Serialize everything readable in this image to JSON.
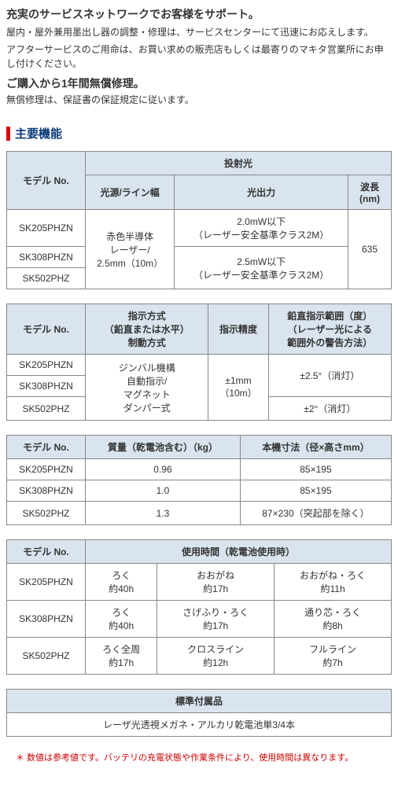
{
  "intro": {
    "title": "充実のサービスネットワークでお客様をサポート。",
    "line1": "屋内・屋外兼用墨出し器の調整・修理は、サービスセンターにて迅速にお応えします。",
    "line2": "アフターサービスのご用命は、お買い求めの販売店もしくは最寄りのマキタ営業所にお申し付けください。",
    "warranty_title": "ご購入から1年間無償修理。",
    "warranty_text": "無償修理は、保証書の保証規定に従います。"
  },
  "section_title": "主要機能",
  "models": [
    "SK205PHZN",
    "SK308PHZN",
    "SK502PHZ"
  ],
  "table1": {
    "h_model": "モデル No.",
    "h_projection": "投射光",
    "h_source": "光源/ライン幅",
    "h_output": "光出力",
    "h_wavelength": "波長(nm)",
    "source": "赤色半導体\nレーザー/\n2.5mm（10m）",
    "output1": "2.0mW以下\n（レーザー安全基準クラス2M）",
    "output2": "2.5mW以下\n（レーザー安全基準クラス2M）",
    "wavelength": "635"
  },
  "table2": {
    "h_model": "モデル No.",
    "h_method": "指示方式\n（鉛直または水平）\n制動方式",
    "h_accuracy": "指示精度",
    "h_range": "鉛直指示範囲（度）\n（レーザー光による\n範囲外の警告方法）",
    "method": "ジンバル機構\n自動指示/\nマグネット\nダンパー式",
    "accuracy": "±1mm\n（10m）",
    "range1": "±2.5°（消灯）",
    "range2": "±2°（消灯）"
  },
  "table3": {
    "h_model": "モデル No.",
    "h_mass": "質量（乾電池含む）（kg）",
    "h_size": "本機寸法（径×高さmm）",
    "rows": [
      {
        "mass": "0.96",
        "size": "85×195"
      },
      {
        "mass": "1.0",
        "size": "85×195"
      },
      {
        "mass": "1.3",
        "size": "87×230（突起部を除く）"
      }
    ]
  },
  "table4": {
    "h_model": "モデル No.",
    "h_usage": "使用時間（乾電池使用時）",
    "rows": [
      {
        "c1": "ろく\n約40h",
        "c2": "おおがね\n約17h",
        "c3": "おおがね・ろく\n約11h"
      },
      {
        "c1": "ろく\n約40h",
        "c2": "さげふり・ろく\n約17h",
        "c3": "通り芯・ろく\n約8h"
      },
      {
        "c1": "ろく全周\n約17h",
        "c2": "クロスライン\n約12h",
        "c3": "フルライン\n約7h"
      }
    ]
  },
  "table5": {
    "h_accessories": "標準付属品",
    "content": "レーザ光透視メガネ・アルカリ乾電池単3/4本"
  },
  "footnote": "＊ 数値は参考値です。バッテリの充電状態や作業条件により、使用時間は異なります。"
}
